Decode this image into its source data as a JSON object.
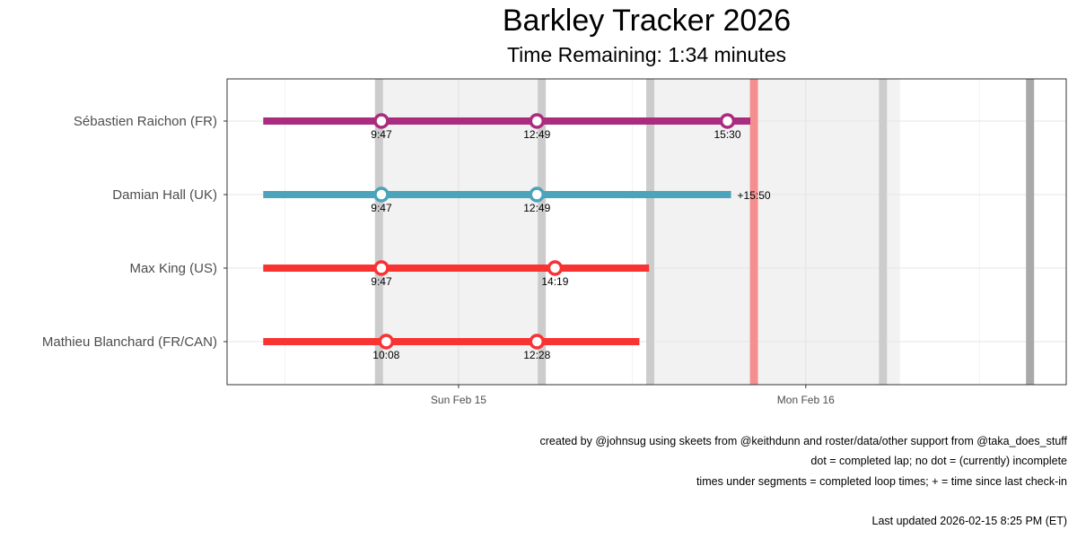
{
  "title": "Barkley Tracker 2026",
  "subtitle": "Time Remaining: 1:34 minutes",
  "chart_data": {
    "type": "timeline",
    "x_axis": {
      "type": "datetime",
      "range": [
        "2026-02-14T08:00",
        "2026-02-16T18:00"
      ],
      "tick_labels": [
        {
          "label": "Sun Feb 15",
          "value": "2026-02-15T00:00"
        },
        {
          "label": "Mon Feb 16",
          "value": "2026-02-16T00:00"
        }
      ],
      "grid": true
    },
    "night_shading": [
      {
        "start": "2026-02-14T18:30",
        "end": "2026-02-15T05:45"
      },
      {
        "start": "2026-02-15T13:15",
        "end": "2026-02-16T06:30"
      }
    ],
    "dark_markers": [
      "2026-02-14T18:30",
      "2026-02-15T05:45",
      "2026-02-15T13:15",
      "2026-02-16T05:20",
      "2026-02-16T15:30"
    ],
    "current_time": "2026-02-15T20:25",
    "runners": [
      {
        "name": "Sébastien Raichon (FR)",
        "color": "#AA2C7E",
        "start": "2026-02-14T10:30",
        "end": "2026-02-15T20:10",
        "laps": [
          {
            "time": "2026-02-14T18:40",
            "label": "9:47"
          },
          {
            "time": "2026-02-15T05:25",
            "label": "12:49"
          },
          {
            "time": "2026-02-15T18:35",
            "label": "15:30"
          }
        ],
        "end_label": ""
      },
      {
        "name": "Damian Hall (UK)",
        "color": "#4BA3BC",
        "start": "2026-02-14T10:30",
        "end": "2026-02-15T18:50",
        "laps": [
          {
            "time": "2026-02-14T18:40",
            "label": "9:47"
          },
          {
            "time": "2026-02-15T05:25",
            "label": "12:49"
          }
        ],
        "end_label": "+15:50"
      },
      {
        "name": "Max King (US)",
        "color": "#F93232",
        "start": "2026-02-14T10:30",
        "end": "2026-02-15T13:10",
        "laps": [
          {
            "time": "2026-02-14T18:40",
            "label": "9:47"
          },
          {
            "time": "2026-02-15T06:40",
            "label": "14:19"
          }
        ],
        "end_label": ""
      },
      {
        "name": "Mathieu Blanchard (FR/CAN)",
        "color": "#F93232",
        "start": "2026-02-14T10:30",
        "end": "2026-02-15T12:30",
        "laps": [
          {
            "time": "2026-02-14T19:00",
            "label": "10:08"
          },
          {
            "time": "2026-02-15T05:25",
            "label": "12:28"
          }
        ],
        "end_label": ""
      }
    ]
  },
  "notes": {
    "credits": "created by @johnsug using skeets from @keithdunn and roster/data/other support from @taka_does_stuff",
    "legend_dot": "dot = completed lap; no dot = (currently) incomplete",
    "legend_times": "times under segments = completed loop times; + = time since last check-in",
    "last_updated": "Last updated 2026-02-15 8:25 PM (ET)"
  }
}
